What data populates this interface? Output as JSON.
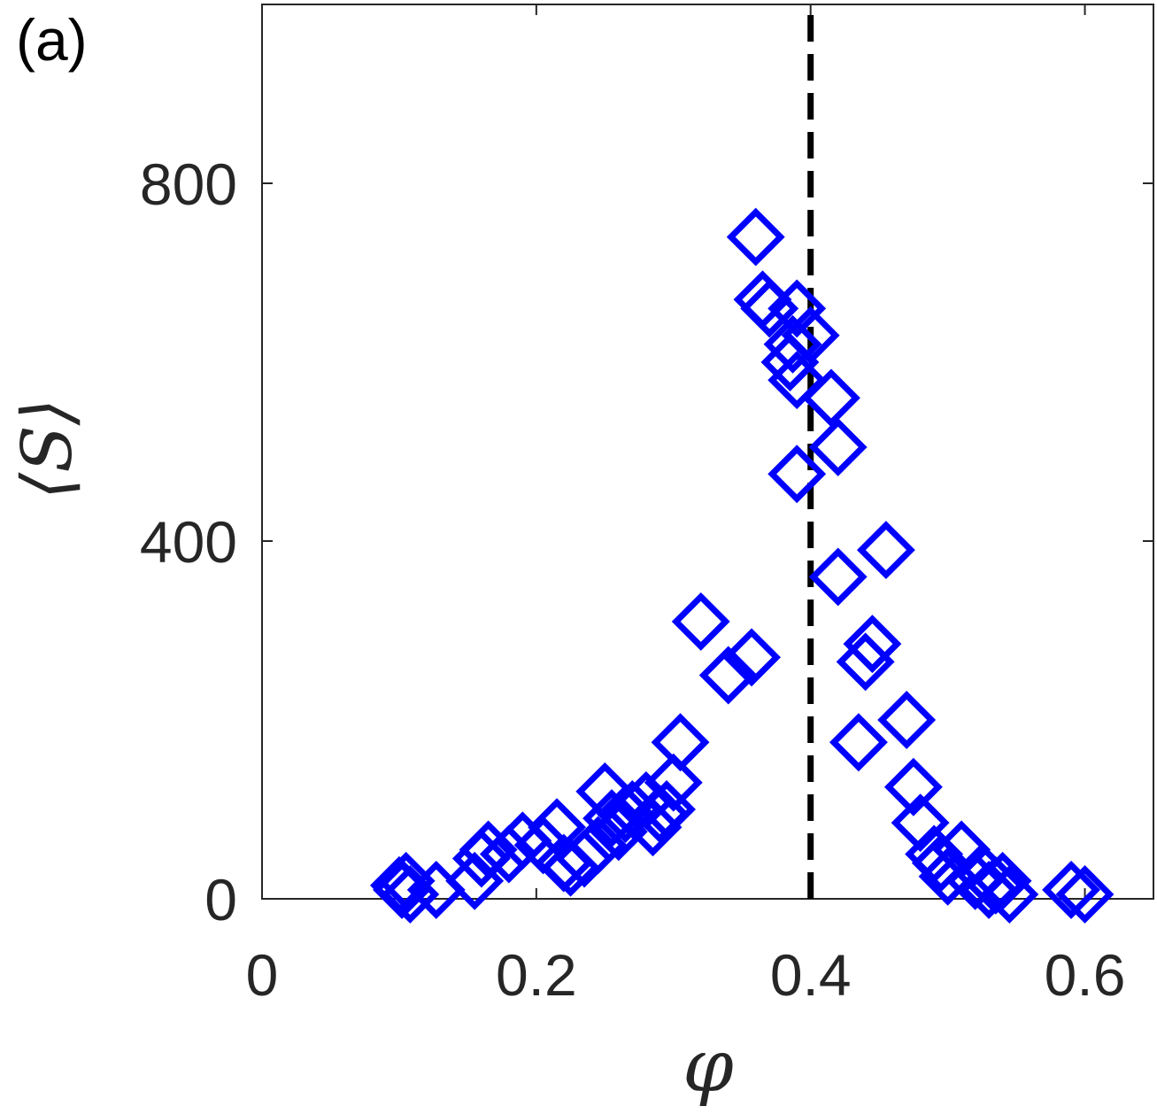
{
  "panel_label": "(a)",
  "chart_data": {
    "type": "scatter",
    "xlabel": "φ",
    "ylabel": "⟨S⟩",
    "xlim": [
      0,
      0.65
    ],
    "ylim": [
      0,
      1000
    ],
    "xticks": [
      0,
      0.2,
      0.4,
      0.6
    ],
    "xtick_labels": [
      "0",
      "0.2",
      "0.4",
      "0.6"
    ],
    "yticks": [
      0,
      400,
      800
    ],
    "ytick_labels": [
      "0",
      "400",
      "800"
    ],
    "grid": false,
    "marker": "diamond",
    "marker_color": "#0000ff",
    "reference_line": {
      "x": 0.4,
      "style": "dashed",
      "color": "#000000"
    },
    "series": [
      {
        "x": [
          0.1,
          0.102,
          0.105,
          0.108,
          0.127,
          0.155,
          0.16,
          0.165,
          0.18,
          0.19,
          0.205,
          0.215,
          0.22,
          0.225,
          0.235,
          0.245,
          0.25,
          0.255,
          0.26,
          0.265,
          0.27,
          0.28,
          0.285,
          0.29,
          0.295,
          0.3,
          0.305,
          0.32,
          0.34,
          0.357,
          0.36,
          0.365,
          0.37,
          0.385,
          0.387,
          0.39,
          0.39,
          0.39,
          0.4,
          0.415,
          0.42,
          0.42,
          0.435,
          0.44,
          0.445,
          0.455,
          0.47,
          0.475,
          0.48,
          0.49,
          0.495,
          0.5,
          0.51,
          0.52,
          0.525,
          0.53,
          0.535,
          0.54,
          0.545,
          0.59,
          0.6
        ],
        "y": [
          15,
          10,
          20,
          5,
          10,
          20,
          45,
          55,
          50,
          65,
          60,
          80,
          40,
          35,
          45,
          60,
          120,
          90,
          75,
          95,
          100,
          110,
          80,
          95,
          100,
          130,
          175,
          310,
          250,
          270,
          740,
          670,
          660,
          600,
          620,
          660,
          580,
          475,
          630,
          560,
          505,
          360,
          175,
          265,
          285,
          390,
          200,
          125,
          85,
          50,
          40,
          25,
          55,
          20,
          30,
          10,
          15,
          20,
          5,
          10,
          5
        ]
      }
    ]
  }
}
